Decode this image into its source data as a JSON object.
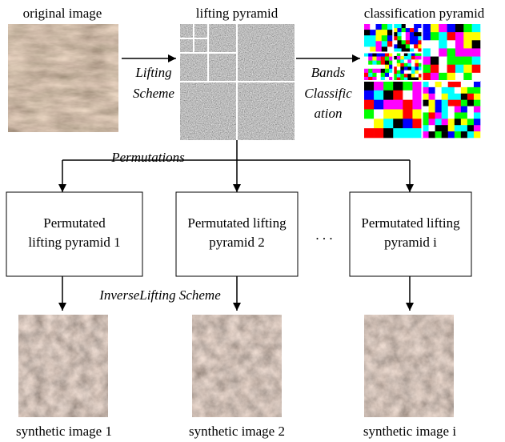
{
  "labels": {
    "original": "original image",
    "lifting": "lifting pyramid",
    "classification": "classification pyramid"
  },
  "arrows": {
    "lifting_scheme": [
      "Lifting",
      "Scheme"
    ],
    "bands": [
      "Bands",
      "Classific",
      "ation"
    ],
    "permutations": "Permutations",
    "inverse": "InverseLifting Scheme"
  },
  "boxes": [
    [
      "Permutated",
      "lifting pyramid 1"
    ],
    [
      "Permutated lifting",
      "pyramid 2"
    ],
    [
      "Permutated lifting",
      "pyramid i"
    ]
  ],
  "ellipsis": ". . .",
  "outputs": [
    "synthetic image 1",
    "synthetic image 2",
    "synthetic image i"
  ]
}
